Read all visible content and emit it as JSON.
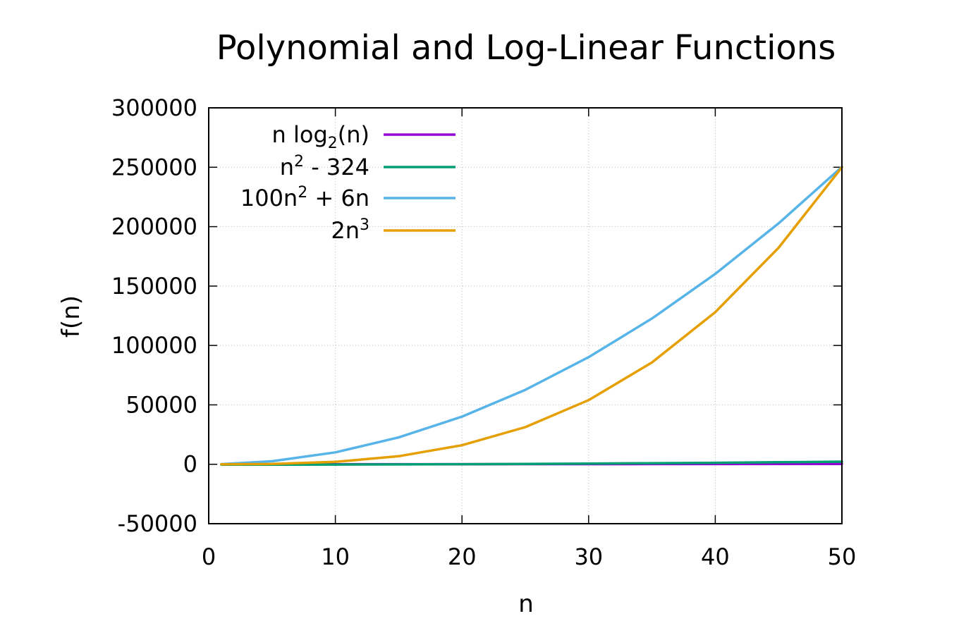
{
  "chart_data": {
    "type": "line",
    "title": "Polynomial and Log-Linear Functions",
    "xlabel": "n",
    "ylabel": "f(n)",
    "xlim": [
      0,
      50
    ],
    "ylim": [
      -50000,
      300000
    ],
    "xticks": [
      0,
      10,
      20,
      30,
      40,
      50
    ],
    "xtick_labels": [
      "0",
      "10",
      "20",
      "30",
      "40",
      "50"
    ],
    "yticks": [
      -50000,
      0,
      50000,
      100000,
      150000,
      200000,
      250000,
      300000
    ],
    "ytick_labels": [
      "-50000",
      "0",
      "50000",
      "100000",
      "150000",
      "200000",
      "250000",
      "300000"
    ],
    "grid": true,
    "legend_position": "top-left",
    "x": [
      1,
      5,
      10,
      15,
      20,
      25,
      30,
      35,
      40,
      45,
      50
    ],
    "series": [
      {
        "name": "n log2(n)",
        "name_parts": {
          "base": "n log",
          "sub": "2",
          "tail": "(n)"
        },
        "color": "#9400d3",
        "values": [
          0,
          12,
          33,
          59,
          86,
          116,
          147,
          180,
          213,
          247,
          282
        ]
      },
      {
        "name": "n2 - 324",
        "name_parts": {
          "base": "n",
          "sup": "2",
          "tail": " - 324"
        },
        "color": "#009e73",
        "values": [
          -323,
          -299,
          -224,
          -99,
          76,
          301,
          576,
          901,
          1276,
          1701,
          2176
        ]
      },
      {
        "name": "100n2 + 6n",
        "name_parts": {
          "base": "100n",
          "sup": "2",
          "tail": " + 6n"
        },
        "color": "#56b4e9",
        "values": [
          106,
          2530,
          10060,
          22590,
          40120,
          62650,
          90180,
          122710,
          160240,
          202770,
          250300
        ]
      },
      {
        "name": "2n3",
        "name_parts": {
          "base": "2n",
          "sup": "3",
          "tail": ""
        },
        "color": "#e69f00",
        "values": [
          2,
          250,
          2000,
          6750,
          16000,
          31250,
          54000,
          85750,
          128000,
          182250,
          250000
        ]
      }
    ]
  }
}
